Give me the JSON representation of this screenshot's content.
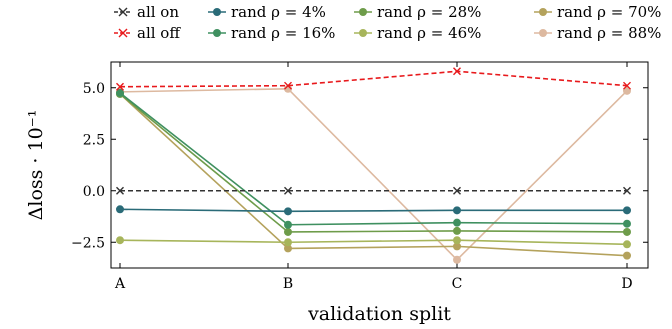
{
  "chart_data": {
    "type": "line",
    "xlabel": "validation split",
    "ylabel": "Δloss · 10⁻¹",
    "categories": [
      "A",
      "B",
      "C",
      "D"
    ],
    "ylim": [
      -3.75,
      6.25
    ],
    "yticks": [
      -2.5,
      0.0,
      2.5,
      5.0
    ],
    "ytick_labels": [
      "−2.5",
      "0.0",
      "2.5",
      "5.0"
    ],
    "grid": false,
    "legend_position": "top",
    "series": [
      {
        "name": "all on",
        "values": [
          0.0,
          0.0,
          0.0,
          0.0
        ],
        "color": "#333333",
        "marker": "x",
        "dashed": true
      },
      {
        "name": "all off",
        "values": [
          5.05,
          5.1,
          5.8,
          5.1
        ],
        "color": "#e8191c",
        "marker": "x",
        "dashed": true
      },
      {
        "name": "rand ρ = 4%",
        "values": [
          -0.9,
          -1.0,
          -0.95,
          -0.95
        ],
        "color": "#2a6b78",
        "marker": "o",
        "dashed": false
      },
      {
        "name": "rand ρ = 16%",
        "values": [
          4.75,
          -1.65,
          -1.55,
          -1.6
        ],
        "color": "#3f9060",
        "marker": "o",
        "dashed": false
      },
      {
        "name": "rand ρ = 28%",
        "values": [
          4.7,
          -2.0,
          -1.95,
          -2.0
        ],
        "color": "#6e9c4a",
        "marker": "o",
        "dashed": false
      },
      {
        "name": "rand ρ = 46%",
        "values": [
          -2.4,
          -2.5,
          -2.4,
          -2.6
        ],
        "color": "#a7b55b",
        "marker": "o",
        "dashed": false
      },
      {
        "name": "rand ρ = 70%",
        "values": [
          4.7,
          -2.8,
          -2.7,
          -3.15
        ],
        "color": "#b4a25c",
        "marker": "o",
        "dashed": false
      },
      {
        "name": "rand ρ = 88%",
        "values": [
          4.8,
          4.95,
          -3.35,
          4.85
        ],
        "color": "#ddb9a0",
        "marker": "o",
        "dashed": false
      }
    ]
  }
}
